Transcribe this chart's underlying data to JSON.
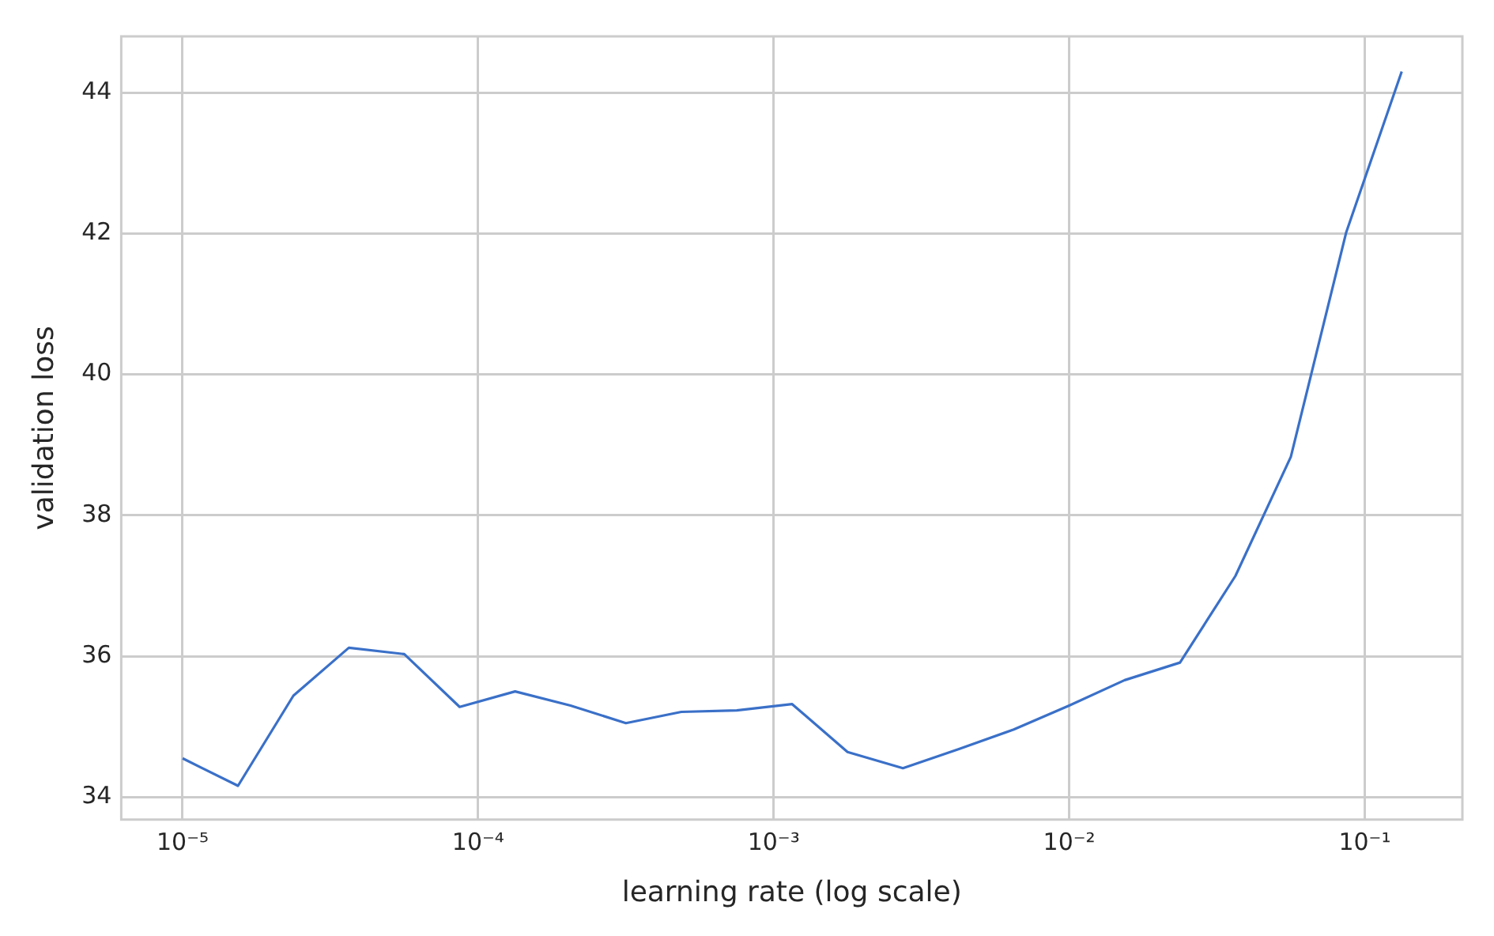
{
  "chart_data": {
    "type": "line",
    "xlabel": "learning rate (log scale)",
    "ylabel": "validation loss",
    "log": "x",
    "grid": true,
    "marker": "none",
    "line_style": "solid",
    "x": [
      1e-05,
      1.54e-05,
      2.371e-05,
      3.652e-05,
      5.623e-05,
      8.66e-05,
      0.0001334,
      0.0002054,
      0.0003162,
      0.000487,
      0.0007499,
      0.001155,
      0.001778,
      0.002738,
      0.004217,
      0.006494,
      0.01,
      0.0154,
      0.02371,
      0.03652,
      0.05623,
      0.0866,
      0.1334
    ],
    "series": [
      {
        "color": "#3a70c8",
        "values": [
          34.55,
          34.16,
          35.44,
          36.12,
          36.03,
          35.28,
          35.5,
          35.3,
          35.05,
          35.21,
          35.23,
          35.32,
          34.64,
          34.41,
          34.68,
          34.96,
          35.3,
          35.66,
          35.91,
          37.14,
          38.83,
          42.02,
          44.3
        ]
      }
    ],
    "xlim": [
      6.2e-06,
      0.214
    ],
    "ylim": [
      33.68,
      44.8
    ],
    "xticks": [
      {
        "value": 1e-05,
        "label": "10⁻⁵"
      },
      {
        "value": 0.0001,
        "label": "10⁻⁴"
      },
      {
        "value": 0.001,
        "label": "10⁻³"
      },
      {
        "value": 0.01,
        "label": "10⁻²"
      },
      {
        "value": 0.1,
        "label": "10⁻¹"
      }
    ],
    "yticks": [
      34,
      36,
      38,
      40,
      42,
      44
    ]
  }
}
